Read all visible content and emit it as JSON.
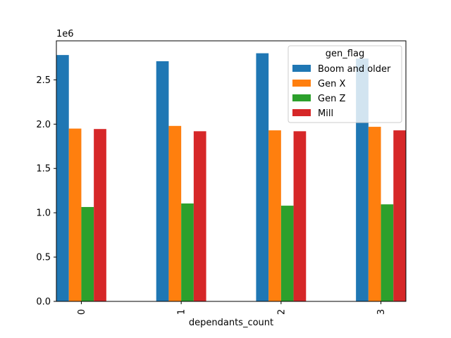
{
  "chart_data": {
    "type": "bar",
    "title": "",
    "xlabel": "dependants_count",
    "ylabel": "",
    "y_offset_label": "1e6",
    "categories": [
      "0",
      "1",
      "2",
      "3"
    ],
    "ylim": [
      0,
      2940000
    ],
    "yticks": [
      0,
      500000,
      1000000,
      1500000,
      2000000,
      2500000
    ],
    "ytick_labels": [
      "0.0",
      "0.5",
      "1.0",
      "1.5",
      "2.0",
      "2.5"
    ],
    "grid": false,
    "legend": {
      "title": "gen_flag",
      "placement": "top-right"
    },
    "series": [
      {
        "name": "Boom and older",
        "color": "#1f77b4",
        "values": [
          2780000,
          2710000,
          2800000,
          2740000
        ]
      },
      {
        "name": "Gen X",
        "color": "#ff7f0e",
        "values": [
          1950000,
          1980000,
          1930000,
          1970000
        ]
      },
      {
        "name": "Gen Z",
        "color": "#2ca02c",
        "values": [
          1065000,
          1105000,
          1080000,
          1095000
        ]
      },
      {
        "name": "Mill",
        "color": "#d62728",
        "values": [
          1945000,
          1920000,
          1920000,
          1930000
        ]
      }
    ]
  }
}
